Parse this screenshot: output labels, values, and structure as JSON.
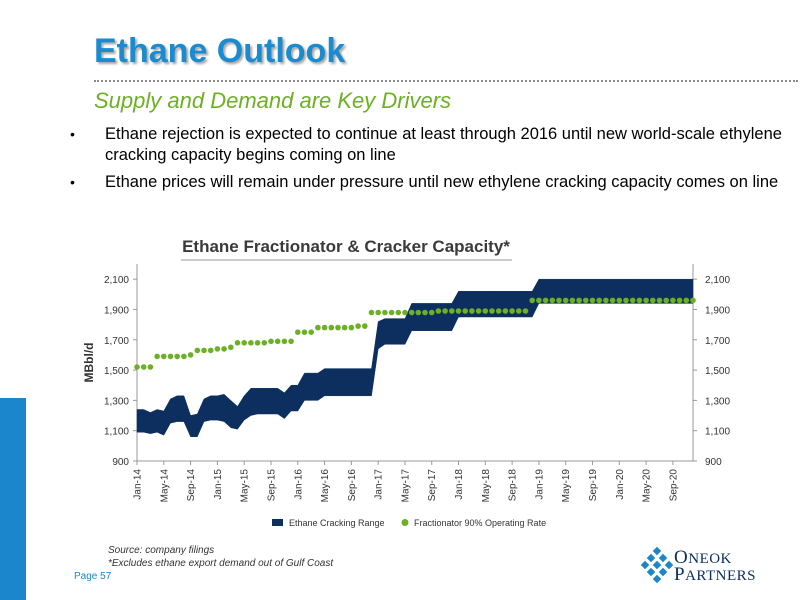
{
  "slide": {
    "title": "Ethane Outlook",
    "subtitle": "Supply and Demand are Key Drivers",
    "bullets": [
      "Ethane rejection is expected to continue at least through 2016 until new world-scale ethylene cracking capacity begins coming on line",
      "Ethane prices will remain under pressure until new ethylene cracking capacity comes on line"
    ],
    "bullet_glyph": "•",
    "source_line1": "Source:  company filings",
    "source_line2": "*Excludes ethane export demand out of Gulf Coast",
    "page": "Page 57",
    "logo_line1_big": "O",
    "logo_line1_rest": "NEOK",
    "logo_line2_big": "P",
    "logo_line2_rest": "ARTNERS"
  },
  "colors": {
    "title": "#1b8bd0",
    "subtitle": "#6bb025",
    "band": "#0d2f5f",
    "dots": "#6bb025",
    "sidebar": "#1b86c9"
  },
  "chart_data": {
    "type": "area",
    "title": "Ethane Fractionator & Cracker Capacity*",
    "ylabel": "MBbl/d",
    "ylim": [
      900,
      2200
    ],
    "yticks": [
      900,
      1100,
      1300,
      1500,
      1700,
      1900,
      2100
    ],
    "ytick_labels": [
      "900",
      "1,100",
      "1,300",
      "1,500",
      "1,700",
      "1,900",
      "2,100"
    ],
    "x_tick_labels": [
      "Jan-14",
      "May-14",
      "Sep-14",
      "Jan-15",
      "May-15",
      "Sep-15",
      "Jan-16",
      "May-16",
      "Sep-16",
      "Jan-17",
      "May-17",
      "Sep-17",
      "Jan-18",
      "May-18",
      "Sep-18",
      "Jan-19",
      "May-19",
      "Sep-19",
      "Jan-20",
      "May-20",
      "Sep-20"
    ],
    "x_tick_month_index": [
      0,
      4,
      8,
      12,
      16,
      20,
      24,
      28,
      32,
      36,
      40,
      44,
      48,
      52,
      56,
      60,
      64,
      68,
      72,
      76,
      80
    ],
    "month_range": [
      0,
      83
    ],
    "series": [
      {
        "name": "Ethane Cracking Range",
        "type": "band",
        "months": [
          0,
          1,
          2,
          3,
          4,
          5,
          6,
          7,
          8,
          9,
          10,
          11,
          12,
          13,
          14,
          15,
          16,
          17,
          18,
          19,
          20,
          21,
          22,
          23,
          24,
          25,
          26,
          27,
          28,
          29,
          30,
          31,
          32,
          33,
          34,
          35,
          36,
          37,
          38,
          39,
          40,
          41,
          42,
          43,
          44,
          45,
          46,
          47,
          48,
          49,
          50,
          51,
          52,
          53,
          54,
          55,
          56,
          57,
          58,
          59,
          60,
          61,
          62,
          63,
          64,
          65,
          66,
          67,
          68,
          69,
          70,
          71,
          72,
          73,
          74,
          75,
          76,
          77,
          78,
          79,
          80,
          81,
          82,
          83
        ],
        "upper": [
          1240,
          1240,
          1220,
          1240,
          1230,
          1310,
          1330,
          1330,
          1200,
          1210,
          1310,
          1330,
          1330,
          1340,
          1300,
          1260,
          1330,
          1380,
          1380,
          1380,
          1380,
          1380,
          1350,
          1400,
          1400,
          1480,
          1480,
          1480,
          1510,
          1510,
          1510,
          1510,
          1510,
          1510,
          1510,
          1510,
          1820,
          1840,
          1840,
          1840,
          1840,
          1940,
          1940,
          1940,
          1940,
          1940,
          1940,
          1940,
          2020,
          2020,
          2020,
          2020,
          2020,
          2020,
          2020,
          2020,
          2020,
          2020,
          2020,
          2020,
          2100,
          2100,
          2100,
          2100,
          2100,
          2100,
          2100,
          2100,
          2100,
          2100,
          2100,
          2100,
          2100,
          2100,
          2100,
          2100,
          2100,
          2100,
          2100,
          2100,
          2100,
          2100,
          2100,
          2100
        ],
        "lower": [
          1090,
          1090,
          1080,
          1090,
          1070,
          1150,
          1160,
          1160,
          1060,
          1060,
          1160,
          1170,
          1170,
          1160,
          1120,
          1110,
          1170,
          1200,
          1210,
          1210,
          1210,
          1210,
          1180,
          1230,
          1230,
          1300,
          1300,
          1300,
          1330,
          1330,
          1330,
          1330,
          1330,
          1330,
          1330,
          1330,
          1640,
          1670,
          1670,
          1670,
          1670,
          1760,
          1760,
          1760,
          1760,
          1760,
          1760,
          1760,
          1850,
          1850,
          1850,
          1850,
          1850,
          1850,
          1850,
          1850,
          1850,
          1850,
          1850,
          1850,
          1940,
          1940,
          1940,
          1940,
          1940,
          1940,
          1940,
          1940,
          1940,
          1940,
          1940,
          1940,
          1940,
          1940,
          1940,
          1940,
          1940,
          1940,
          1940,
          1940,
          1940,
          1940,
          1940,
          1940
        ]
      },
      {
        "name": "Fractionator 90% Operating Rate",
        "type": "scatter",
        "months": [
          0,
          1,
          2,
          3,
          4,
          5,
          6,
          7,
          8,
          9,
          10,
          11,
          12,
          13,
          14,
          15,
          16,
          17,
          18,
          19,
          20,
          21,
          22,
          23,
          24,
          25,
          26,
          27,
          28,
          29,
          30,
          31,
          32,
          33,
          34,
          35,
          36,
          37,
          38,
          39,
          40,
          41,
          42,
          43,
          44,
          45,
          46,
          47,
          48,
          49,
          50,
          51,
          52,
          53,
          54,
          55,
          56,
          57,
          58,
          59,
          60,
          61,
          62,
          63,
          64,
          65,
          66,
          67,
          68,
          69,
          70,
          71,
          72,
          73,
          74,
          75,
          76,
          77,
          78,
          79,
          80,
          81,
          82,
          83
        ],
        "values": [
          1520,
          1520,
          1520,
          1590,
          1590,
          1590,
          1590,
          1590,
          1600,
          1630,
          1630,
          1630,
          1640,
          1640,
          1650,
          1680,
          1680,
          1680,
          1680,
          1680,
          1690,
          1690,
          1690,
          1690,
          1750,
          1750,
          1750,
          1780,
          1780,
          1780,
          1780,
          1780,
          1780,
          1790,
          1790,
          1880,
          1880,
          1880,
          1880,
          1880,
          1880,
          1880,
          1880,
          1880,
          1880,
          1890,
          1890,
          1890,
          1890,
          1890,
          1890,
          1890,
          1890,
          1890,
          1890,
          1890,
          1890,
          1890,
          1890,
          1960,
          1960,
          1960,
          1960,
          1960,
          1960,
          1960,
          1960,
          1960,
          1960,
          1960,
          1960,
          1960,
          1960,
          1960,
          1960,
          1960,
          1960,
          1960,
          1960,
          1960,
          1960,
          1960,
          1960,
          1960
        ]
      }
    ],
    "legend_position": "bottom",
    "grid": false
  }
}
